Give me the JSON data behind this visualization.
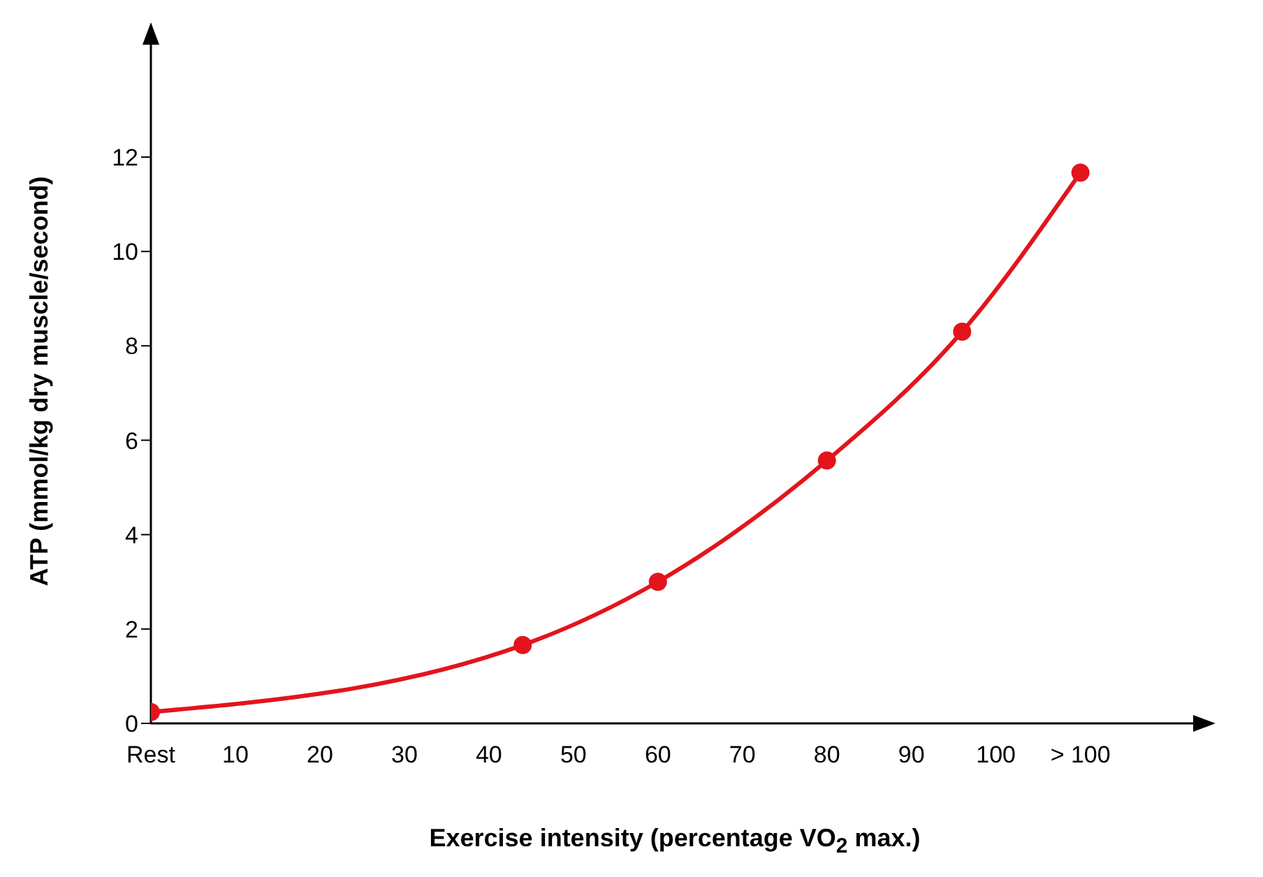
{
  "chart_data": {
    "type": "line",
    "xlabel": "Exercise intensity (percentage VO$_{2}$ max.)",
    "ylabel": "ATP (mmol/kg dry muscle/second)",
    "x": [
      0,
      44,
      60,
      80,
      96,
      110
    ],
    "series": [
      {
        "color": "#e3141c",
        "values": [
          0.24,
          1.66,
          3.0,
          5.57,
          8.3,
          11.67
        ]
      }
    ],
    "xlim": [
      0,
      124
    ],
    "ylim": [
      0,
      14.5
    ],
    "xticks": [
      {
        "value": 0,
        "label": "Rest"
      },
      10,
      20,
      30,
      40,
      50,
      60,
      70,
      80,
      90,
      100,
      {
        "value": 110,
        "label": "> 100"
      }
    ],
    "yticks": [
      0,
      2,
      4,
      6,
      8,
      10,
      12
    ],
    "marker": "circle",
    "line_style": "solid"
  }
}
